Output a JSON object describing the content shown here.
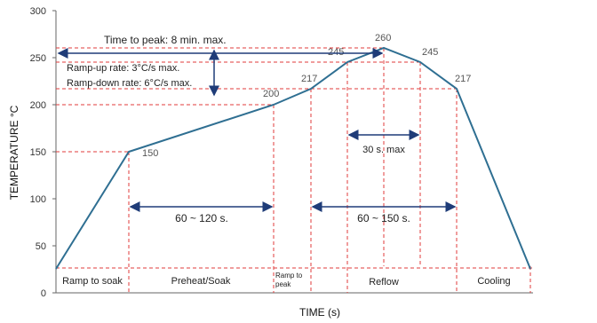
{
  "chart_data": {
    "type": "line",
    "title": "",
    "xlabel": "TIME (s)",
    "ylabel": "TEMPERATURE °C",
    "ylim": [
      0,
      300
    ],
    "yticks": [
      "0",
      "50",
      "100",
      "150",
      "200",
      "250",
      "300"
    ],
    "grid": false,
    "series": [
      {
        "points": [
          {
            "stage": 0,
            "temp": 25
          },
          {
            "stage": 1,
            "temp": 150
          },
          {
            "stage": 2,
            "temp": 200
          },
          {
            "stage": 3,
            "temp": 217
          },
          {
            "stage": 4,
            "temp": 245
          },
          {
            "stage": 5,
            "temp": 260
          },
          {
            "stage": 6,
            "temp": 245
          },
          {
            "stage": 7,
            "temp": 217
          },
          {
            "stage": 8,
            "temp": 25
          }
        ],
        "color": "#2f6f92"
      }
    ],
    "point_labels": [
      {
        "stage": 1,
        "text": "150"
      },
      {
        "stage": 2,
        "text": "200"
      },
      {
        "stage": 3,
        "text": "217"
      },
      {
        "stage": 4,
        "text": "245"
      },
      {
        "stage": 5,
        "text": "260"
      },
      {
        "stage": 6,
        "text": "245"
      },
      {
        "stage": 7,
        "text": "217"
      }
    ],
    "annotations": {
      "time_to_peak": "Time to peak: 8 min. max.",
      "ramp_up": "Ramp-up rate: 3°C/s max.",
      "ramp_down": "Ramp-down rate: 6°C/s max.",
      "soak_range": "60 ~ 120 s.",
      "reflow_range": "60 ~ 150 s.",
      "peak_window": "30 s. max"
    },
    "zones": [
      "Ramp to soak",
      "Preheat/Soak",
      "Ramp to peak",
      "Reflow",
      "Cooling"
    ],
    "colors": {
      "curve": "#2f6f92",
      "guides": "#e23b3b",
      "arrows": "#1f3c78"
    }
  }
}
